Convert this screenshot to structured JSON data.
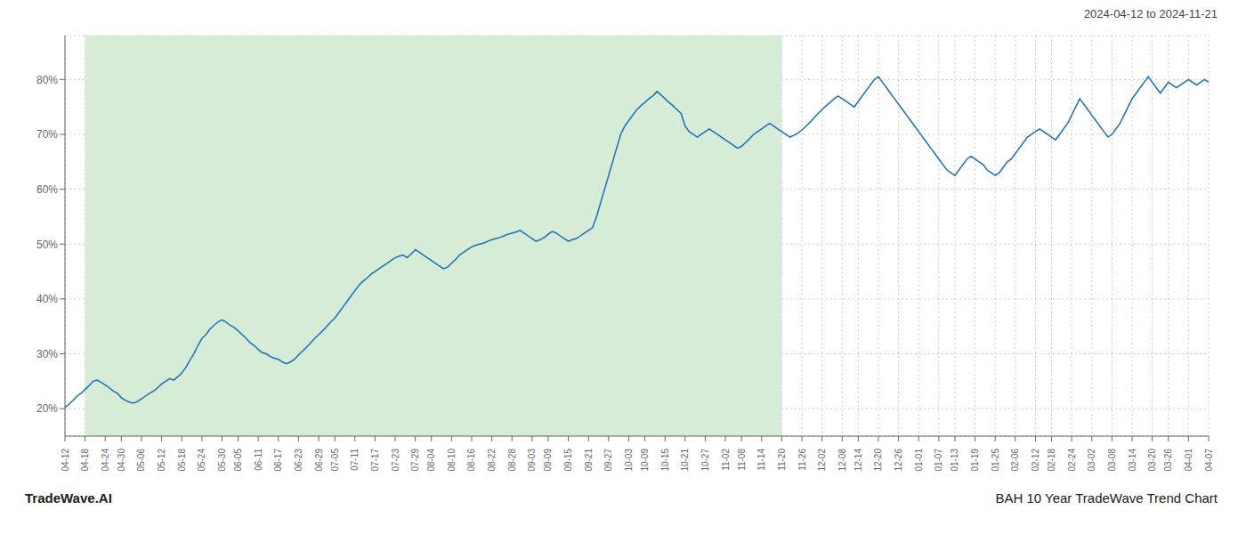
{
  "chart_data": {
    "type": "line",
    "title": "2024-04-12 to 2024-11-21",
    "annotations": [
      "TradeWave.AI",
      "BAH 10 Year TradeWave Trend Chart"
    ],
    "color": "#1a6fba",
    "grid": true,
    "ylim": [
      15,
      88
    ],
    "yticks": [
      {
        "value": 20,
        "label": "20%"
      },
      {
        "value": 30,
        "label": "30%"
      },
      {
        "value": 40,
        "label": "40%"
      },
      {
        "value": 50,
        "label": "50%"
      },
      {
        "value": 60,
        "label": "60%"
      },
      {
        "value": 70,
        "label": "70%"
      },
      {
        "value": 80,
        "label": "80%"
      }
    ],
    "shaded_region": {
      "from": "04-18",
      "to": "11-20",
      "color": "#d6ecd6"
    },
    "categories": [
      "04-12",
      null,
      null,
      null,
      null,
      "04-18",
      null,
      null,
      null,
      null,
      "04-24",
      null,
      null,
      null,
      "04-30",
      null,
      null,
      null,
      null,
      "05-06",
      null,
      null,
      null,
      null,
      "05-12",
      null,
      null,
      null,
      null,
      "05-18",
      null,
      null,
      null,
      null,
      "05-24",
      null,
      null,
      null,
      null,
      "05-30",
      null,
      null,
      null,
      "06-05",
      null,
      null,
      null,
      null,
      "06-11",
      null,
      null,
      null,
      null,
      "06-17",
      null,
      null,
      null,
      null,
      "06-23",
      null,
      null,
      null,
      null,
      "06-29",
      null,
      null,
      null,
      "07-05",
      null,
      null,
      null,
      null,
      "07-11",
      null,
      null,
      null,
      null,
      "07-17",
      null,
      null,
      null,
      null,
      "07-23",
      null,
      null,
      null,
      null,
      "07-29",
      null,
      null,
      null,
      "08-04",
      null,
      null,
      null,
      null,
      "08-10",
      null,
      null,
      null,
      null,
      "08-16",
      null,
      null,
      null,
      null,
      "08-22",
      null,
      null,
      null,
      null,
      "08-28",
      null,
      null,
      null,
      null,
      "09-03",
      null,
      null,
      null,
      "09-09",
      null,
      null,
      null,
      null,
      "09-15",
      null,
      null,
      null,
      null,
      "09-21",
      null,
      null,
      null,
      null,
      "09-27",
      null,
      null,
      null,
      null,
      "10-03",
      null,
      null,
      null,
      "10-09",
      null,
      null,
      null,
      null,
      "10-15",
      null,
      null,
      null,
      null,
      "10-21",
      null,
      null,
      null,
      null,
      "10-27",
      null,
      null,
      null,
      null,
      "11-02",
      null,
      null,
      null,
      "11-08",
      null,
      null,
      null,
      null,
      "11-14",
      null,
      null,
      null,
      null,
      "11-20",
      null,
      null,
      null,
      null,
      "11-26",
      null,
      null,
      null,
      null,
      "12-02",
      null,
      null,
      null,
      null,
      "12-08",
      null,
      null,
      null,
      "12-14",
      null,
      null,
      null,
      null,
      "12-20",
      null,
      null,
      null,
      null,
      "12-26",
      null,
      null,
      null,
      null,
      "01-01",
      null,
      null,
      null,
      null,
      "01-07",
      null,
      null,
      null,
      "01-13",
      null,
      null,
      null,
      null,
      "01-19",
      null,
      null,
      null,
      null,
      "01-25",
      null,
      null,
      null,
      null,
      "02-06",
      null,
      null,
      null,
      null,
      "02-12",
      null,
      null,
      null,
      "02-18",
      null,
      null,
      null,
      null,
      "02-24",
      null,
      null,
      null,
      null,
      "03-02",
      null,
      null,
      null,
      null,
      "03-08",
      null,
      null,
      null,
      null,
      "03-14",
      null,
      null,
      null,
      null,
      "03-20",
      null,
      null,
      null,
      "03-26",
      null,
      null,
      null,
      null,
      "04-01",
      null,
      null,
      null,
      null,
      "04-07"
    ],
    "values": [
      20.2,
      20.8,
      21.5,
      22.3,
      22.8,
      23.5,
      24.2,
      25.0,
      25.2,
      24.8,
      24.3,
      23.8,
      23.2,
      22.8,
      22.0,
      21.5,
      21.2,
      21.0,
      21.3,
      21.8,
      22.3,
      22.8,
      23.2,
      23.8,
      24.5,
      25.0,
      25.5,
      25.2,
      25.8,
      26.5,
      27.5,
      28.8,
      30.0,
      31.5,
      32.8,
      33.5,
      34.5,
      35.2,
      35.8,
      36.2,
      35.8,
      35.2,
      34.8,
      34.2,
      33.5,
      32.8,
      32.0,
      31.5,
      30.8,
      30.2,
      30.0,
      29.5,
      29.2,
      29.0,
      28.5,
      28.2,
      28.5,
      29.0,
      29.8,
      30.5,
      31.2,
      32.0,
      32.8,
      33.5,
      34.2,
      35.0,
      35.8,
      36.5,
      37.5,
      38.5,
      39.5,
      40.5,
      41.5,
      42.5,
      43.2,
      43.8,
      44.5,
      45.0,
      45.5,
      46.0,
      46.5,
      47.0,
      47.5,
      47.8,
      48.0,
      47.5,
      48.2,
      49.0,
      48.5,
      48.0,
      47.5,
      47.0,
      46.5,
      46.0,
      45.5,
      45.8,
      46.5,
      47.2,
      48.0,
      48.5,
      49.0,
      49.5,
      49.8,
      50.0,
      50.2,
      50.5,
      50.8,
      51.0,
      51.2,
      51.5,
      51.8,
      52.0,
      52.2,
      52.5,
      52.0,
      51.5,
      51.0,
      50.5,
      50.8,
      51.2,
      51.8,
      52.3,
      52.0,
      51.5,
      51.0,
      50.5,
      50.8,
      51.0,
      51.5,
      52.0,
      52.5,
      53.0,
      55.0,
      57.5,
      60.0,
      62.5,
      65.0,
      67.5,
      70.0,
      71.5,
      72.5,
      73.5,
      74.5,
      75.2,
      75.8,
      76.5,
      77.0,
      77.8,
      77.2,
      76.5,
      75.8,
      75.2,
      74.5,
      73.8,
      71.5,
      70.5,
      70.0,
      69.5,
      70.0,
      70.5,
      71.0,
      70.5,
      70.0,
      69.5,
      69.0,
      68.5,
      68.0,
      67.5,
      67.8,
      68.5,
      69.2,
      70.0,
      70.5,
      71.0,
      71.5,
      72.0,
      71.5,
      71.0,
      70.5,
      70.0,
      69.5,
      69.8,
      70.2,
      70.8,
      71.5,
      72.2,
      73.0,
      73.8,
      74.5,
      75.2,
      75.8,
      76.5,
      77.0,
      76.5,
      76.0,
      75.5,
      75.0,
      76.0,
      77.0,
      78.0,
      79.0,
      80.0,
      80.5,
      79.5,
      78.5,
      77.5,
      76.5,
      75.5,
      74.5,
      73.5,
      72.5,
      71.5,
      70.5,
      69.5,
      68.5,
      67.5,
      66.5,
      65.5,
      64.5,
      63.5,
      63.0,
      62.5,
      63.5,
      64.5,
      65.5,
      66.0,
      65.5,
      65.0,
      64.5,
      63.5,
      63.0,
      62.5,
      63.0,
      64.0,
      65.0,
      65.5,
      66.5,
      67.5,
      68.5,
      69.5,
      70.0,
      70.5,
      71.0,
      70.5,
      70.0,
      69.5,
      69.0,
      70.0,
      71.0,
      72.0,
      73.5,
      75.0,
      76.5,
      75.5,
      74.5,
      73.5,
      72.5,
      71.5,
      70.5,
      69.5,
      70.0,
      71.0,
      72.0,
      73.5,
      75.0,
      76.5,
      77.5,
      78.5,
      79.5,
      80.5,
      79.5,
      78.5,
      77.5,
      78.5,
      79.5,
      79.0,
      78.5,
      79.0,
      79.5,
      80.0,
      79.5,
      79.0,
      79.5,
      80.0,
      79.5
    ]
  }
}
